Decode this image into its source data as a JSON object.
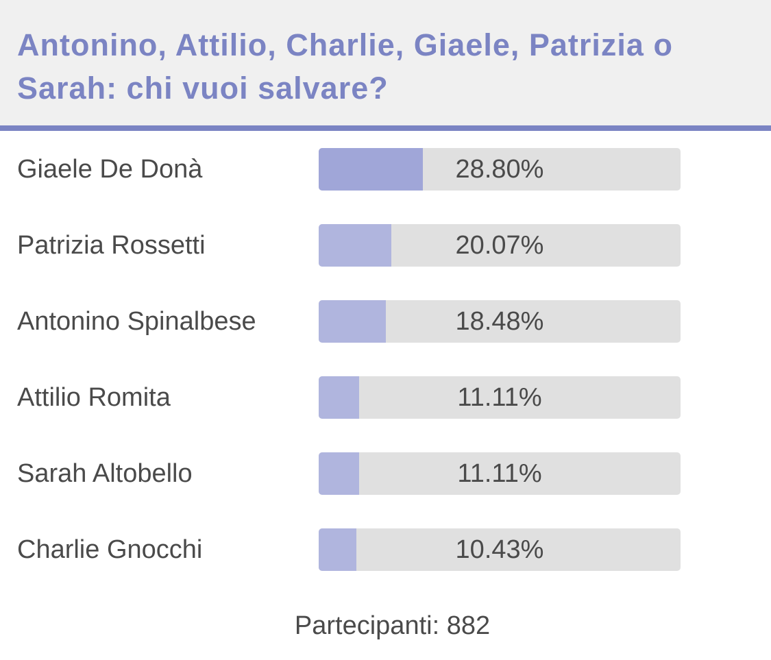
{
  "poll": {
    "question": "Antonino, Attilio, Charlie, Giaele, Patrizia o Sarah: chi vuoi salvare?",
    "options": [
      {
        "name": "Giaele De Donà",
        "percent_label": "28.80%",
        "share": 0.288
      },
      {
        "name": "Patrizia Rossetti",
        "percent_label": "20.07%",
        "share": 0.2007
      },
      {
        "name": "Antonino Spinalbese",
        "percent_label": "18.48%",
        "share": 0.1848
      },
      {
        "name": "Attilio Romita",
        "percent_label": "11.11%",
        "share": 0.1111
      },
      {
        "name": "Sarah Altobello",
        "percent_label": "11.11%",
        "share": 0.1111
      },
      {
        "name": "Charlie Gnocchi",
        "percent_label": "10.43%",
        "share": 0.1043
      }
    ],
    "participants_label": "Partecipanti: 882"
  },
  "colors": {
    "accent": "#7b84c3",
    "bar_fill": "#b0b5de",
    "bar_fill_leading": "#a0a6d8",
    "bar_track": "#e0e0e0",
    "header_background": "#f0f0f0",
    "text": "#4a4a4a"
  }
}
